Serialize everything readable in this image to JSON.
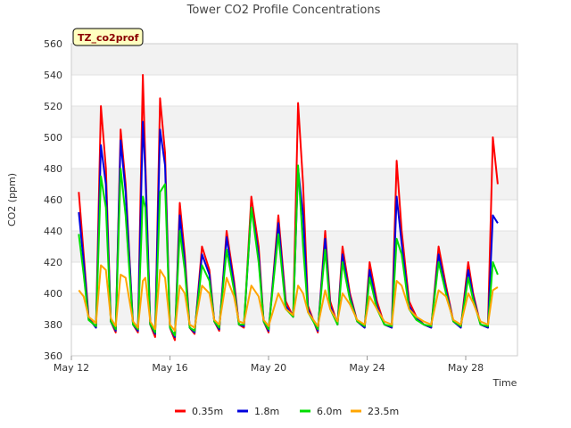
{
  "chart_data": {
    "type": "line",
    "title": "Tower CO2 Profile Concentrations",
    "xlabel": "Time",
    "ylabel": "CO2 (ppm)",
    "site_tag": "TZ_co2prof",
    "xlim_days": [
      12,
      30.1
    ],
    "ylim": [
      360,
      560
    ],
    "yticks": [
      360,
      380,
      400,
      420,
      440,
      460,
      480,
      500,
      520,
      540,
      560
    ],
    "xticks": [
      {
        "day": 12,
        "label": "May 12"
      },
      {
        "day": 16,
        "label": "May 16"
      },
      {
        "day": 20,
        "label": "May 20"
      },
      {
        "day": 24,
        "label": "May 24"
      },
      {
        "day": 28,
        "label": "May 28"
      }
    ],
    "legend_position": "bottom",
    "grid": true,
    "series": [
      {
        "name": "0.35m",
        "color": "#ff0000",
        "x": [
          12.3,
          12.5,
          12.7,
          13.0,
          13.2,
          13.4,
          13.6,
          13.8,
          14.0,
          14.2,
          14.5,
          14.7,
          14.9,
          15.0,
          15.2,
          15.4,
          15.6,
          15.8,
          16.0,
          16.2,
          16.4,
          16.6,
          16.8,
          17.0,
          17.3,
          17.6,
          17.8,
          18.0,
          18.3,
          18.6,
          18.8,
          19.0,
          19.3,
          19.6,
          19.8,
          20.0,
          20.4,
          20.7,
          21.0,
          21.2,
          21.4,
          21.6,
          22.0,
          22.3,
          22.5,
          22.8,
          23.0,
          23.3,
          23.6,
          23.9,
          24.1,
          24.4,
          24.7,
          25.0,
          25.2,
          25.4,
          25.7,
          26.0,
          26.3,
          26.6,
          26.9,
          27.2,
          27.5,
          27.8,
          28.1,
          28.3,
          28.6,
          28.9,
          29.1,
          29.3
        ],
        "y": [
          465,
          425,
          385,
          378,
          520,
          480,
          382,
          375,
          505,
          470,
          380,
          375,
          540,
          485,
          380,
          372,
          525,
          490,
          378,
          370,
          458,
          425,
          378,
          374,
          430,
          415,
          382,
          376,
          440,
          408,
          380,
          378,
          462,
          430,
          382,
          375,
          450,
          395,
          385,
          522,
          470,
          392,
          375,
          440,
          395,
          380,
          430,
          400,
          382,
          378,
          420,
          395,
          380,
          378,
          485,
          440,
          395,
          385,
          380,
          378,
          430,
          405,
          382,
          378,
          420,
          400,
          380,
          378,
          500,
          470
        ]
      },
      {
        "name": "1.8m",
        "color": "#0000dd",
        "x": [
          12.3,
          12.5,
          12.7,
          13.0,
          13.2,
          13.4,
          13.6,
          13.8,
          14.0,
          14.2,
          14.5,
          14.7,
          14.9,
          15.0,
          15.2,
          15.4,
          15.6,
          15.8,
          16.0,
          16.2,
          16.4,
          16.6,
          16.8,
          17.0,
          17.3,
          17.6,
          17.8,
          18.0,
          18.3,
          18.6,
          18.8,
          19.0,
          19.3,
          19.6,
          19.8,
          20.0,
          20.4,
          20.7,
          21.0,
          21.2,
          21.4,
          21.6,
          22.0,
          22.3,
          22.5,
          22.8,
          23.0,
          23.3,
          23.6,
          23.9,
          24.1,
          24.4,
          24.7,
          25.0,
          25.2,
          25.4,
          25.7,
          26.0,
          26.3,
          26.6,
          26.9,
          27.2,
          27.5,
          27.8,
          28.1,
          28.3,
          28.6,
          28.9,
          29.1,
          29.3
        ],
        "y": [
          452,
          420,
          384,
          378,
          495,
          470,
          382,
          376,
          498,
          465,
          380,
          376,
          510,
          478,
          380,
          374,
          505,
          482,
          378,
          372,
          450,
          420,
          378,
          375,
          425,
          412,
          382,
          377,
          436,
          405,
          380,
          379,
          455,
          425,
          382,
          376,
          445,
          392,
          385,
          480,
          450,
          390,
          376,
          435,
          392,
          380,
          425,
          398,
          382,
          378,
          415,
          392,
          380,
          378,
          462,
          432,
          392,
          384,
          380,
          378,
          425,
          402,
          382,
          378,
          415,
          398,
          380,
          378,
          450,
          445
        ]
      },
      {
        "name": "6.0m",
        "color": "#00dd00",
        "x": [
          12.3,
          12.5,
          12.7,
          13.0,
          13.2,
          13.4,
          13.6,
          13.8,
          14.0,
          14.2,
          14.5,
          14.7,
          14.9,
          15.0,
          15.2,
          15.4,
          15.6,
          15.8,
          16.0,
          16.2,
          16.4,
          16.6,
          16.8,
          17.0,
          17.3,
          17.6,
          17.8,
          18.0,
          18.3,
          18.6,
          18.8,
          19.0,
          19.3,
          19.6,
          19.8,
          20.0,
          20.4,
          20.7,
          21.0,
          21.2,
          21.4,
          21.6,
          22.0,
          22.3,
          22.5,
          22.8,
          23.0,
          23.3,
          23.6,
          23.9,
          24.1,
          24.4,
          24.7,
          25.0,
          25.2,
          25.4,
          25.7,
          26.0,
          26.3,
          26.6,
          26.9,
          27.2,
          27.5,
          27.8,
          28.1,
          28.3,
          28.6,
          28.9,
          29.1,
          29.3
        ],
        "y": [
          438,
          412,
          383,
          379,
          475,
          455,
          382,
          377,
          480,
          450,
          380,
          377,
          462,
          455,
          380,
          375,
          465,
          470,
          378,
          373,
          440,
          415,
          378,
          376,
          418,
          408,
          382,
          378,
          428,
          402,
          380,
          380,
          455,
          420,
          382,
          377,
          438,
          390,
          385,
          482,
          430,
          388,
          377,
          428,
          390,
          380,
          420,
          396,
          382,
          379,
          410,
          390,
          380,
          379,
          435,
          425,
          390,
          383,
          380,
          379,
          420,
          400,
          382,
          379,
          410,
          396,
          380,
          379,
          420,
          412
        ]
      },
      {
        "name": "23.5m",
        "color": "#ffa500",
        "x": [
          12.3,
          12.5,
          12.7,
          13.0,
          13.2,
          13.4,
          13.6,
          13.8,
          14.0,
          14.2,
          14.5,
          14.7,
          14.9,
          15.0,
          15.2,
          15.4,
          15.6,
          15.8,
          16.0,
          16.2,
          16.4,
          16.6,
          16.8,
          17.0,
          17.3,
          17.6,
          17.8,
          18.0,
          18.3,
          18.6,
          18.8,
          19.0,
          19.3,
          19.6,
          19.8,
          20.0,
          20.4,
          20.7,
          21.0,
          21.2,
          21.4,
          21.6,
          22.0,
          22.3,
          22.5,
          22.8,
          23.0,
          23.3,
          23.6,
          23.9,
          24.1,
          24.4,
          24.7,
          25.0,
          25.2,
          25.4,
          25.7,
          26.0,
          26.3,
          26.6,
          26.9,
          27.2,
          27.5,
          27.8,
          28.1,
          28.3,
          28.6,
          28.9,
          29.1,
          29.3
        ],
        "y": [
          402,
          398,
          385,
          381,
          418,
          415,
          384,
          379,
          412,
          410,
          382,
          378,
          408,
          410,
          382,
          377,
          415,
          410,
          380,
          376,
          405,
          400,
          380,
          378,
          405,
          400,
          383,
          380,
          410,
          398,
          382,
          381,
          405,
          398,
          383,
          379,
          400,
          390,
          386,
          405,
          400,
          388,
          379,
          402,
          390,
          382,
          400,
          393,
          383,
          380,
          398,
          390,
          382,
          380,
          408,
          405,
          390,
          385,
          382,
          380,
          402,
          398,
          383,
          380,
          400,
          394,
          382,
          380,
          402,
          404
        ]
      }
    ]
  }
}
